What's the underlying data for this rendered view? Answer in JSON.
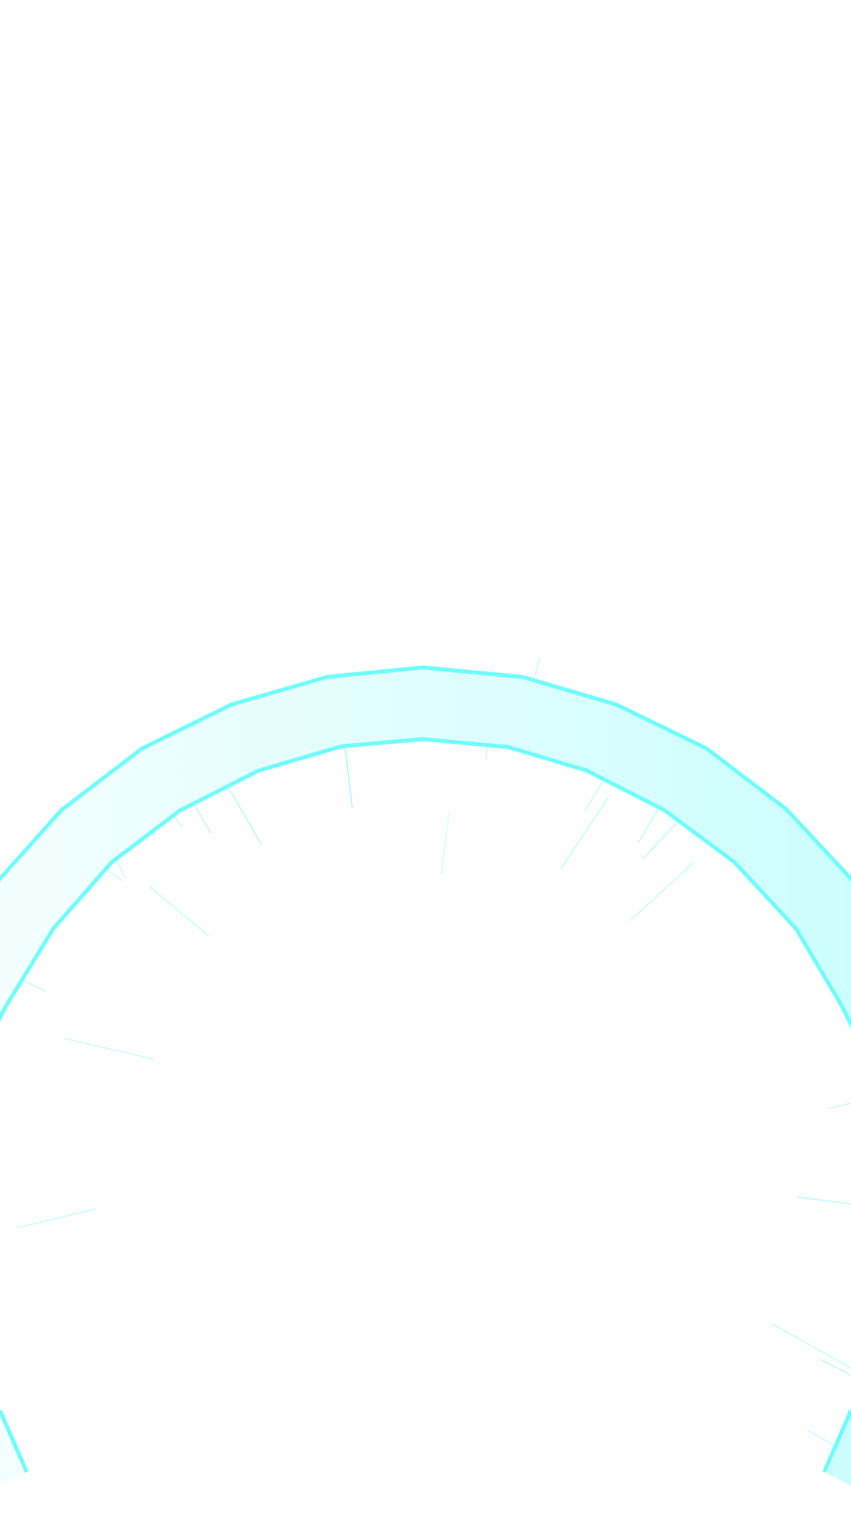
{
  "scene": {
    "description_visible_text": "",
    "colors": {
      "background": "#ffffff",
      "ring_stroke": "#6ffcfc",
      "ring_fill_left": "#f4ffff",
      "ring_fill_right": "#ccfdfd",
      "speed_line": "#a6f6f6"
    },
    "elements": {
      "ring": "polygonal-arc-ring",
      "effects": "speed-lines"
    }
  }
}
